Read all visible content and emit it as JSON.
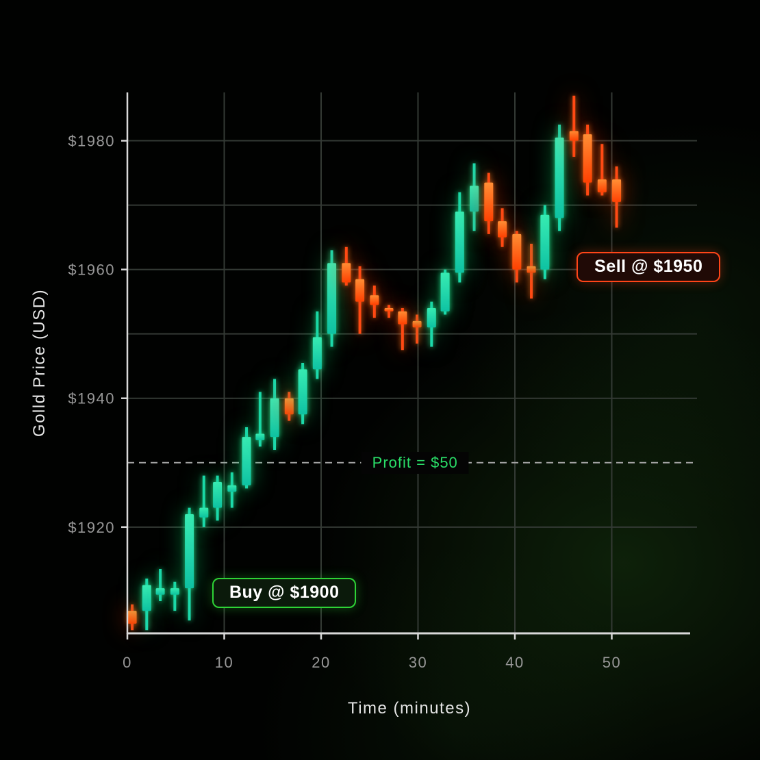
{
  "chart_data": {
    "type": "candlestick",
    "title": "",
    "xlabel": "Time (minutes)",
    "ylabel": "Golld Price (USD)",
    "x_domain": [
      0,
      58.8
    ],
    "y_domain": [
      1903.5,
      1987.5
    ],
    "x_ticks": [
      0,
      10,
      20,
      30,
      40,
      50
    ],
    "y_ticks": [
      {
        "value": 1920,
        "label": "$1920"
      },
      {
        "value": 1940,
        "label": "$1940"
      },
      {
        "value": 1960,
        "label": "$1960"
      },
      {
        "value": 1980,
        "label": "$1980"
      }
    ],
    "y_gridlines": [
      1920,
      1940,
      1950,
      1960,
      1970,
      1980
    ],
    "grid_on": true,
    "legend": null,
    "candles": [
      {
        "t": 0.5,
        "o": 1907.0,
        "h": 1908.0,
        "l": 1904.0,
        "c": 1905.0
      },
      {
        "t": 2.0,
        "o": 1907.0,
        "h": 1912.0,
        "l": 1904.0,
        "c": 1911.0
      },
      {
        "t": 3.4,
        "o": 1909.5,
        "h": 1913.5,
        "l": 1908.5,
        "c": 1910.5
      },
      {
        "t": 4.9,
        "o": 1909.5,
        "h": 1911.5,
        "l": 1907.0,
        "c": 1910.5
      },
      {
        "t": 6.4,
        "o": 1910.5,
        "h": 1923.0,
        "l": 1905.5,
        "c": 1922.0
      },
      {
        "t": 7.9,
        "o": 1921.5,
        "h": 1928.0,
        "l": 1920.0,
        "c": 1923.0
      },
      {
        "t": 9.3,
        "o": 1923.0,
        "h": 1928.0,
        "l": 1921.0,
        "c": 1927.0
      },
      {
        "t": 10.8,
        "o": 1925.5,
        "h": 1928.5,
        "l": 1923.0,
        "c": 1926.5
      },
      {
        "t": 12.3,
        "o": 1926.5,
        "h": 1935.5,
        "l": 1926.0,
        "c": 1934.0
      },
      {
        "t": 13.7,
        "o": 1933.5,
        "h": 1941.0,
        "l": 1932.5,
        "c": 1934.5
      },
      {
        "t": 15.2,
        "o": 1934.0,
        "h": 1943.0,
        "l": 1932.0,
        "c": 1940.0
      },
      {
        "t": 16.7,
        "o": 1940.0,
        "h": 1941.0,
        "l": 1936.5,
        "c": 1937.5
      },
      {
        "t": 18.1,
        "o": 1937.5,
        "h": 1945.5,
        "l": 1936.0,
        "c": 1944.5
      },
      {
        "t": 19.6,
        "o": 1944.5,
        "h": 1953.5,
        "l": 1943.0,
        "c": 1949.5
      },
      {
        "t": 21.1,
        "o": 1950.0,
        "h": 1963.0,
        "l": 1948.0,
        "c": 1961.0
      },
      {
        "t": 22.6,
        "o": 1961.0,
        "h": 1963.5,
        "l": 1957.5,
        "c": 1958.0
      },
      {
        "t": 24.0,
        "o": 1958.5,
        "h": 1960.5,
        "l": 1950.0,
        "c": 1955.0
      },
      {
        "t": 25.5,
        "o": 1956.0,
        "h": 1957.5,
        "l": 1952.5,
        "c": 1954.5
      },
      {
        "t": 27.0,
        "o": 1954.0,
        "h": 1954.5,
        "l": 1952.5,
        "c": 1953.5
      },
      {
        "t": 28.4,
        "o": 1953.5,
        "h": 1954.0,
        "l": 1947.5,
        "c": 1951.5
      },
      {
        "t": 29.9,
        "o": 1952.0,
        "h": 1953.0,
        "l": 1948.5,
        "c": 1951.0
      },
      {
        "t": 31.4,
        "o": 1951.0,
        "h": 1955.0,
        "l": 1948.0,
        "c": 1954.0
      },
      {
        "t": 32.8,
        "o": 1953.5,
        "h": 1960.0,
        "l": 1953.0,
        "c": 1959.5
      },
      {
        "t": 34.3,
        "o": 1959.5,
        "h": 1972.0,
        "l": 1958.0,
        "c": 1969.0
      },
      {
        "t": 35.8,
        "o": 1969.0,
        "h": 1976.5,
        "l": 1966.0,
        "c": 1973.0
      },
      {
        "t": 37.3,
        "o": 1973.5,
        "h": 1975.0,
        "l": 1965.5,
        "c": 1967.5
      },
      {
        "t": 38.7,
        "o": 1967.5,
        "h": 1969.5,
        "l": 1963.5,
        "c": 1965.0
      },
      {
        "t": 40.2,
        "o": 1965.5,
        "h": 1966.0,
        "l": 1958.0,
        "c": 1960.0
      },
      {
        "t": 41.7,
        "o": 1960.5,
        "h": 1964.0,
        "l": 1955.5,
        "c": 1959.5
      },
      {
        "t": 43.1,
        "o": 1960.0,
        "h": 1970.0,
        "l": 1958.5,
        "c": 1968.5
      },
      {
        "t": 44.6,
        "o": 1968.0,
        "h": 1982.5,
        "l": 1966.0,
        "c": 1980.5
      },
      {
        "t": 46.1,
        "o": 1981.5,
        "h": 1987.0,
        "l": 1977.5,
        "c": 1980.0
      },
      {
        "t": 47.5,
        "o": 1981.0,
        "h": 1982.5,
        "l": 1971.5,
        "c": 1973.5
      },
      {
        "t": 49.0,
        "o": 1974.0,
        "h": 1979.5,
        "l": 1971.5,
        "c": 1972.0
      },
      {
        "t": 50.5,
        "o": 1974.0,
        "h": 1976.0,
        "l": 1966.5,
        "c": 1970.5
      }
    ],
    "colors": {
      "bull_top": "#3aedb6",
      "bull_bottom": "#0ec2a2",
      "bull_wick": "#1cd9ab",
      "bear_top": "#ff8f35",
      "bear_bottom": "#ff4203",
      "bear_wick": "#ff4a14",
      "grid": "#343a35",
      "axis_spine": "#d9d9d9",
      "tick_label": "#979797",
      "axis_title": "#e4e4e4",
      "dashed_line": "#a3a3a3"
    },
    "annotations": {
      "buy": {
        "label": "Buy @ $1900",
        "time": 16.2,
        "price": 1909.8,
        "border": "#2ed336",
        "bg": "#0b1a0b",
        "text_color": "#ffffff"
      },
      "sell": {
        "label": "Sell @ $1950",
        "time": 53.8,
        "price": 1960.4,
        "border": "#ff4518",
        "bg": "#200a06",
        "text_color": "#ffffff"
      },
      "profit_line": {
        "label": "Profit = $50",
        "price": 1930,
        "label_time": 29.7,
        "text_color": "#2ade68",
        "bg": "#040404"
      }
    }
  }
}
